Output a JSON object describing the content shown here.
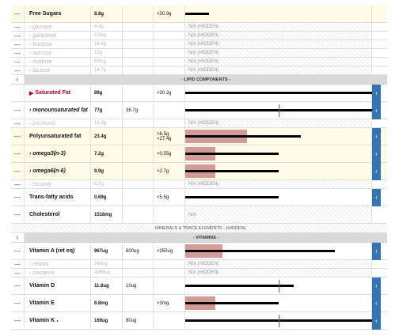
{
  "rows": [
    {
      "type": "row",
      "size": "tall",
      "hl": true,
      "toggle": "—",
      "name": "Free Sugars",
      "amount": "8.8g",
      "rda": "",
      "limit": "<30.9g",
      "bar": {
        "pct": 0.127
      }
    },
    {
      "type": "row",
      "size": "short",
      "hidden": true,
      "toggle": "—",
      "name": "› glucose",
      "amount": "4.4g",
      "rda": "",
      "limit": "",
      "na": "N/A (HIDDEN)"
    },
    {
      "type": "row",
      "size": "short",
      "hidden": true,
      "toggle": "—",
      "name": "› galactose",
      "amount": "5.58g",
      "rda": "",
      "limit": "",
      "na": "N/A (HIDDEN)"
    },
    {
      "type": "row",
      "size": "short",
      "hidden": true,
      "toggle": "—",
      "name": "› fructose",
      "amount": "16.6g",
      "rda": "",
      "limit": "",
      "na": "N/A (HIDDEN)"
    },
    {
      "type": "row",
      "size": "short",
      "hidden": true,
      "toggle": "—",
      "name": "› sucrose",
      "amount": "15g",
      "rda": "",
      "limit": "",
      "na": "N/A (HIDDEN)"
    },
    {
      "type": "row",
      "size": "short",
      "hidden": true,
      "toggle": "—",
      "name": "› maltose",
      "amount": "8.61g",
      "rda": "",
      "limit": "",
      "na": "N/A (HIDDEN)"
    },
    {
      "type": "row",
      "size": "short",
      "hidden": true,
      "toggle": "—",
      "name": "› lactose",
      "amount": "14.7g",
      "rda": "",
      "limit": "",
      "na": "N/A (HIDDEN)"
    },
    {
      "type": "section",
      "toggle": "‹",
      "label": "- LIPID COMPONENTS -"
    },
    {
      "type": "row",
      "size": "tall",
      "toggle": "",
      "red": true,
      "name": "Saturated Fat",
      "amount": "89g",
      "rda": "",
      "limit": "<30.2g",
      "bar": {
        "pct": 1.0
      },
      "btn": true
    },
    {
      "type": "row",
      "size": "tall",
      "toggle": "—",
      "name": "› monounsaturated fat",
      "italic": true,
      "amount": "77g",
      "rda": "35.7g",
      "limit": "",
      "bar": {
        "pct": 1.0
      },
      "line": 0.5,
      "btn": true
    },
    {
      "type": "row",
      "size": "short",
      "hidden": true,
      "toggle": "—",
      "name": "› cis-mono",
      "amount": "15.9g",
      "rda": "",
      "limit": "",
      "na": "N/A (HIDDEN)"
    },
    {
      "type": "row",
      "size": "tall",
      "hl": true,
      "toggle": "—",
      "name": "Polyunsaturated fat",
      "amount": "23.4g",
      "rda": "",
      "limit": ">6.5g <27.4g",
      "bar": {
        "pct": 0.62
      },
      "pink": 0.33,
      "btn": true
    },
    {
      "type": "row",
      "size": "tall",
      "hl": true,
      "toggle": "—",
      "name": "› omega3(n-3)",
      "italic": true,
      "amount": "7.2g",
      "rda": "",
      "limit": ">0.55g",
      "bar": {
        "pct": 0.5
      },
      "pink": 0.16,
      "btn": true
    },
    {
      "type": "row",
      "size": "tall",
      "hl": true,
      "toggle": "—",
      "name": "› omega6(n-6)",
      "italic": true,
      "amount": "9.9g",
      "rda": "",
      "limit": ">2.7g",
      "bar": {
        "pct": 0.5
      },
      "pink": 0.16,
      "btn": true
    },
    {
      "type": "row",
      "size": "short",
      "hidden": true,
      "toggle": "—",
      "name": "› cis-poly",
      "amount": "6.7g",
      "rda": "",
      "limit": "",
      "na": "N/A (HIDDEN)"
    },
    {
      "type": "row",
      "size": "tall",
      "toggle": "—",
      "name": "Trans-fatty acids",
      "amount": "0.69g",
      "rda": "",
      "limit": "<5.5g",
      "bar": {
        "pct": 0.5
      },
      "btn": true
    },
    {
      "type": "row",
      "size": "tall",
      "toggle": "—",
      "name": "Cholesterol",
      "amount": "1518mg",
      "rda": "",
      "limit": "",
      "na": "N/A",
      "naGrey": true
    },
    {
      "type": "hiddensec",
      "label": "- MINERALS & TRACE ELEMENTS - (HIDDEN)"
    },
    {
      "type": "section",
      "toggle": "‹",
      "label": "- VITAMINS -"
    },
    {
      "type": "row",
      "size": "tall",
      "toggle": "—",
      "name": "Vitamin A (ret eq)",
      "amount": "967ug",
      "rda": "600ug",
      "limit": "<250ug",
      "bar": {
        "pct": 0.8
      },
      "pink": 0.2,
      "btn": true
    },
    {
      "type": "row",
      "size": "short",
      "hidden": true,
      "toggle": "—",
      "name": "› retinol",
      "amount": "264ug",
      "rda": "",
      "limit": "",
      "na": "N/A (HIDDEN)"
    },
    {
      "type": "row",
      "size": "short",
      "hidden": true,
      "toggle": "—",
      "name": "› carotene",
      "amount": "4069ug",
      "rda": "",
      "limit": "",
      "na": "N/A (HIDDEN)"
    },
    {
      "type": "row",
      "size": "tall",
      "toggle": "—",
      "name": "Vitamin D",
      "amount": "11.8ug",
      "rda": "10ug",
      "limit": "",
      "bar": {
        "pct": 0.58
      },
      "line": 0.5,
      "btn": true
    },
    {
      "type": "row",
      "size": "tall",
      "toggle": "—",
      "name": "Vitamin E",
      "amount": "6.8mg",
      "rda": "",
      "limit": ">3mg",
      "bar": {
        "pct": 0.5
      },
      "pink": 0.16,
      "btn": true
    },
    {
      "type": "row",
      "size": "tall",
      "toggle": "—",
      "name": "Vitamin K ₁",
      "amount": "169ug",
      "rda": "80ug",
      "limit": "",
      "bar": {
        "pct": 1.0
      },
      "line": 0.5,
      "btn": true
    }
  ]
}
